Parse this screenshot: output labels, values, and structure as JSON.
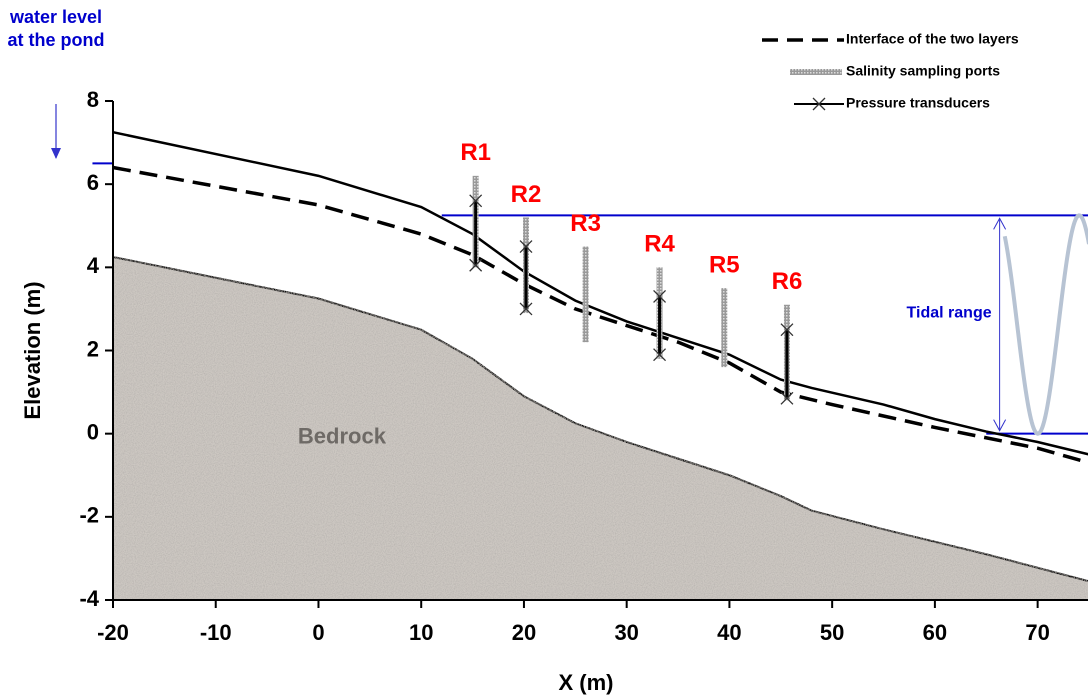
{
  "chart_data": {
    "type": "line",
    "annotation": [
      "water level",
      "at the pond"
    ],
    "xlabel": "X (m)",
    "ylabel": "Elevation (m)",
    "xlim": [
      -20,
      75
    ],
    "ylim": [
      -4,
      8
    ],
    "xticks": [
      -20,
      -10,
      0,
      10,
      20,
      30,
      40,
      50,
      60,
      70
    ],
    "yticks": [
      -4,
      -2,
      0,
      2,
      4,
      6,
      8
    ],
    "ground_surface": {
      "color": "#000000",
      "x": [
        -20,
        0,
        10,
        15,
        20,
        25,
        30,
        35,
        40,
        45,
        48,
        55,
        60,
        65,
        70,
        75
      ],
      "values": [
        7.25,
        6.2,
        5.45,
        4.8,
        3.9,
        3.2,
        2.7,
        2.3,
        1.9,
        1.3,
        1.1,
        0.7,
        0.35,
        0.05,
        -0.2,
        -0.5
      ]
    },
    "interface": {
      "name": "Interface of the two layers",
      "color": "#000000",
      "x": [
        -20,
        0,
        10,
        15,
        20,
        25,
        30,
        35,
        40,
        45,
        50,
        60,
        70,
        75
      ],
      "values": [
        6.4,
        5.5,
        4.8,
        4.3,
        3.6,
        3.0,
        2.6,
        2.2,
        1.7,
        1.0,
        0.7,
        0.15,
        -0.35,
        -0.7
      ]
    },
    "bedrock": {
      "name": "Bedrock",
      "color": "#cdc8c2",
      "x": [
        -20,
        0,
        10,
        15,
        20,
        25,
        30,
        35,
        40,
        45,
        48,
        55,
        65,
        75
      ],
      "values": [
        4.25,
        3.25,
        2.5,
        1.8,
        0.9,
        0.25,
        -0.2,
        -0.6,
        -1.0,
        -1.5,
        -1.85,
        -2.3,
        -2.9,
        -3.55
      ]
    },
    "ports_label": "Salinity sampling ports",
    "transducers_label": "Pressure transducers",
    "wells": [
      {
        "name": "R1",
        "x": 15.3,
        "port": [
          4.0,
          6.2
        ],
        "transducers": [
          5.6,
          4.05
        ]
      },
      {
        "name": "R2",
        "x": 20.2,
        "port": [
          2.9,
          5.2
        ],
        "transducers": [
          4.5,
          3.0
        ]
      },
      {
        "name": "R3",
        "x": 26,
        "port": [
          2.2,
          4.5
        ],
        "transducers": []
      },
      {
        "name": "R4",
        "x": 33.2,
        "port": [
          1.8,
          4.0
        ],
        "transducers": [
          3.3,
          1.9
        ]
      },
      {
        "name": "R5",
        "x": 39.5,
        "port": [
          1.6,
          3.5
        ],
        "transducers": []
      },
      {
        "name": "R6",
        "x": 45.6,
        "port": [
          0.8,
          3.1
        ],
        "transducers": [
          2.5,
          0.85
        ]
      }
    ],
    "pond_level": {
      "x": [
        -22,
        -20
      ],
      "value": 6.5
    },
    "high_tide": {
      "x": [
        12,
        75
      ],
      "value": 5.25
    },
    "low_tide": {
      "x": [
        65,
        75
      ],
      "value": 0
    },
    "tidal_range_label": "Tidal range"
  }
}
